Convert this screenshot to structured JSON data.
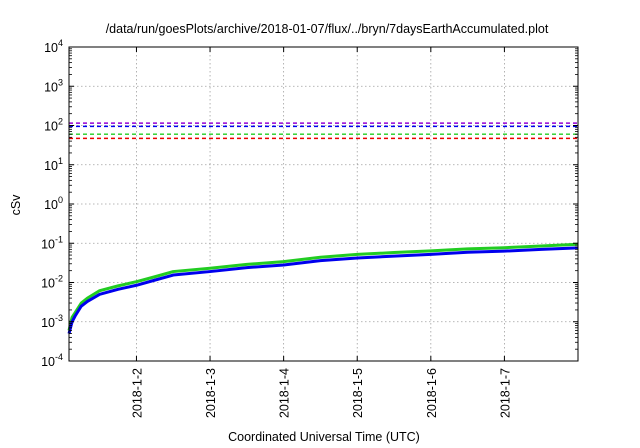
{
  "chart_data": {
    "type": "line",
    "title": "/data/run/goesPlots/archive/2018-01-07/flux/../bryn/7daysEarthAccumulated.plot",
    "xlabel": "Coordinated Universal Time (UTC)",
    "ylabel": "cSv",
    "y_scale": "log",
    "x_range": [
      "2018-01-01 02:00",
      "2018-01-08 00:00"
    ],
    "ylim": [
      0.0001,
      10000
    ],
    "y_ticks": [
      {
        "value": 0.0001,
        "base": "10",
        "exp": "-4"
      },
      {
        "value": 0.001,
        "base": "10",
        "exp": "-3"
      },
      {
        "value": 0.01,
        "base": "10",
        "exp": "-2"
      },
      {
        "value": 0.1,
        "base": "10",
        "exp": "-1"
      },
      {
        "value": 1,
        "base": "10",
        "exp": "0"
      },
      {
        "value": 10,
        "base": "10",
        "exp": "1"
      },
      {
        "value": 100,
        "base": "10",
        "exp": "2"
      },
      {
        "value": 1000,
        "base": "10",
        "exp": "3"
      },
      {
        "value": 10000,
        "base": "10",
        "exp": "4"
      }
    ],
    "x_ticks": [
      {
        "value": "2018-01-02",
        "label": "2018-1-2"
      },
      {
        "value": "2018-01-03",
        "label": "2018-1-3"
      },
      {
        "value": "2018-01-04",
        "label": "2018-1-4"
      },
      {
        "value": "2018-01-05",
        "label": "2018-1-5"
      },
      {
        "value": "2018-01-06",
        "label": "2018-1-6"
      },
      {
        "value": "2018-01-07",
        "label": "2018-1-7"
      }
    ],
    "grid": true,
    "series": [
      {
        "color": "#22cc22",
        "x": [
          "2018-01-01 02:00",
          "2018-01-01 03:00",
          "2018-01-01 04:00",
          "2018-01-01 06:00",
          "2018-01-01 08:00",
          "2018-01-01 12:00",
          "2018-01-01 18:00",
          "2018-01-02 00:00",
          "2018-01-02 06:00",
          "2018-01-02 12:00",
          "2018-01-03 00:00",
          "2018-01-03 12:00",
          "2018-01-04 00:00",
          "2018-01-04 12:00",
          "2018-01-05 00:00",
          "2018-01-05 12:00",
          "2018-01-06 00:00",
          "2018-01-06 12:00",
          "2018-01-07 00:00",
          "2018-01-07 12:00",
          "2018-01-08 00:00"
        ],
        "values": [
          0.0006,
          0.0013,
          0.0017,
          0.003,
          0.004,
          0.0062,
          0.0082,
          0.0105,
          0.014,
          0.019,
          0.023,
          0.029,
          0.034,
          0.044,
          0.052,
          0.058,
          0.064,
          0.072,
          0.077,
          0.085,
          0.094
        ]
      },
      {
        "color": "#0000ee",
        "x": [
          "2018-01-01 02:00",
          "2018-01-01 03:00",
          "2018-01-01 04:00",
          "2018-01-01 06:00",
          "2018-01-01 08:00",
          "2018-01-01 12:00",
          "2018-01-01 18:00",
          "2018-01-02 00:00",
          "2018-01-02 06:00",
          "2018-01-02 12:00",
          "2018-01-03 00:00",
          "2018-01-03 12:00",
          "2018-01-04 00:00",
          "2018-01-04 12:00",
          "2018-01-05 00:00",
          "2018-01-05 12:00",
          "2018-01-06 00:00",
          "2018-01-06 12:00",
          "2018-01-07 00:00",
          "2018-01-07 12:00",
          "2018-01-08 00:00"
        ],
        "values": [
          0.0005,
          0.001,
          0.0014,
          0.0025,
          0.0033,
          0.005,
          0.0067,
          0.0085,
          0.0115,
          0.0155,
          0.019,
          0.024,
          0.028,
          0.036,
          0.042,
          0.047,
          0.052,
          0.059,
          0.063,
          0.07,
          0.076
        ]
      }
    ],
    "reference_lines": [
      {
        "value": 115,
        "color": "#9400d3",
        "style": "dashed"
      },
      {
        "value": 95,
        "color": "#0000ee",
        "style": "dashed"
      },
      {
        "value": 60,
        "color": "#22cc22",
        "style": "dashed"
      },
      {
        "value": 47,
        "color": "#ee0000",
        "style": "dashed"
      }
    ]
  }
}
